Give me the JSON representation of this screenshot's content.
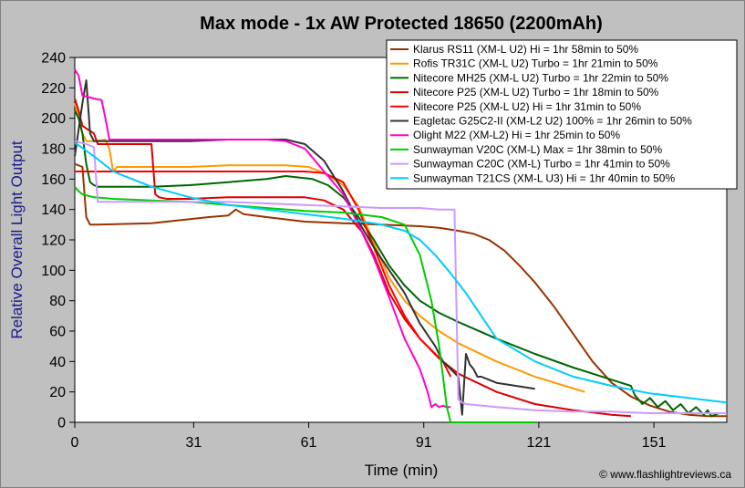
{
  "chart_data": {
    "type": "line",
    "title": "Max mode - 1x AW Protected 18650 (2200mAh)",
    "xlabel": "Time (min)",
    "ylabel": "Relative Overall Light Output",
    "xlim": [
      0,
      170
    ],
    "ylim": [
      0,
      240
    ],
    "xticks": [
      "0",
      "31",
      "61",
      "91",
      "121",
      "151"
    ],
    "xtick_values": [
      0,
      31,
      61,
      91,
      121,
      151
    ],
    "yticks": [
      "0",
      "20",
      "40",
      "60",
      "80",
      "100",
      "120",
      "140",
      "160",
      "180",
      "200",
      "220",
      "240"
    ],
    "ytick_values": [
      0,
      20,
      40,
      60,
      80,
      100,
      120,
      140,
      160,
      180,
      200,
      220,
      240
    ],
    "grid": false,
    "legend_position": "top-right",
    "credit": "© www.flashlightreviews.ca",
    "series": [
      {
        "name": "Klarus RS11 (XM-L U2) Hi = 1hr 58min to 50%",
        "color": "#993300",
        "x": [
          0,
          2,
          3,
          4,
          6,
          20,
          35,
          40,
          42,
          44,
          50,
          60,
          70,
          80,
          90,
          95,
          100,
          104,
          108,
          112,
          116,
          120,
          125,
          130,
          135,
          140,
          145,
          150,
          155,
          160,
          165,
          170
        ],
        "y": [
          170,
          168,
          135,
          130,
          130,
          131,
          135,
          136,
          140,
          137,
          135,
          132,
          131,
          130,
          129,
          128,
          126,
          124,
          120,
          113,
          103,
          92,
          76,
          58,
          40,
          26,
          17,
          11,
          7,
          5,
          4,
          4
        ]
      },
      {
        "name": "Rofis TR31C (XM-L U2) Turbo = 1hr 21min to 50%",
        "color": "#ff9900",
        "x": [
          0,
          1,
          2,
          3,
          5,
          8,
          9,
          10,
          11,
          12,
          20,
          30,
          40,
          55,
          61,
          65,
          70,
          74,
          78,
          82,
          86,
          90,
          95,
          100,
          110,
          120,
          133
        ],
        "y": [
          210,
          200,
          190,
          185,
          185,
          186,
          180,
          165,
          168,
          168,
          168,
          168,
          169,
          169,
          168,
          164,
          156,
          142,
          118,
          95,
          80,
          70,
          60,
          52,
          40,
          30,
          20
        ]
      },
      {
        "name": "Nitecore MH25 (XM-L U2) Turbo = 1hr 22min to 50%",
        "color": "#006600",
        "x": [
          0,
          1,
          2,
          3,
          4,
          5,
          6,
          10,
          20,
          30,
          40,
          50,
          55,
          62,
          66,
          70,
          74,
          78,
          82,
          86,
          90,
          95,
          100,
          110,
          120,
          130,
          140,
          145,
          146,
          148,
          150,
          152,
          154,
          156,
          158,
          160,
          162,
          164,
          165,
          166,
          168
        ],
        "y": [
          205,
          200,
          190,
          170,
          158,
          156,
          155,
          155,
          155,
          156,
          158,
          160,
          162,
          160,
          156,
          148,
          135,
          120,
          103,
          90,
          80,
          72,
          66,
          55,
          45,
          36,
          28,
          24,
          18,
          12,
          16,
          10,
          14,
          8,
          12,
          6,
          10,
          5,
          8,
          4,
          6
        ]
      },
      {
        "name": "Nitecore P25 (XM-L U2) Turbo = 1hr 18min to 50%",
        "color": "#dd0000",
        "x": [
          0,
          1,
          2,
          5,
          6,
          7,
          20,
          21,
          22,
          24,
          30,
          40,
          50,
          60,
          65,
          70,
          75,
          78,
          82,
          86,
          90,
          95,
          100,
          110,
          120,
          130,
          140,
          145
        ],
        "y": [
          213,
          205,
          195,
          190,
          183,
          183,
          183,
          150,
          148,
          147,
          147,
          148,
          148,
          148,
          146,
          140,
          125,
          110,
          85,
          68,
          55,
          42,
          32,
          20,
          12,
          8,
          5,
          4
        ]
      },
      {
        "name": "Nitecore P25 (XM-L U2) Hi = 1hr 31min to 50%",
        "color": "#ff0000",
        "x": [
          0,
          5,
          10,
          20,
          30,
          40,
          50,
          60,
          65,
          70,
          74,
          78,
          82,
          86,
          90,
          94,
          96,
          97,
          98
        ],
        "y": [
          165,
          165,
          165,
          165,
          165,
          165,
          165,
          165,
          164,
          158,
          140,
          115,
          90,
          70,
          55,
          45,
          40,
          35,
          30
        ]
      },
      {
        "name": "Eagletac G25C2-II (XM-L2 U2) 100% = 1hr 26min to 50%",
        "color": "#333333",
        "x": [
          0,
          2,
          3,
          4,
          5,
          10,
          20,
          30,
          40,
          50,
          55,
          60,
          65,
          70,
          74,
          78,
          82,
          86,
          90,
          94,
          96,
          98,
          100,
          101,
          102,
          103,
          104,
          105,
          106,
          108,
          110,
          115,
          120
        ],
        "y": [
          175,
          210,
          225,
          190,
          185,
          185,
          185,
          185,
          186,
          186,
          186,
          183,
          172,
          152,
          132,
          115,
          100,
          85,
          65,
          50,
          40,
          35,
          30,
          5,
          45,
          38,
          35,
          30,
          30,
          28,
          26,
          24,
          22
        ]
      },
      {
        "name": "Olight M22 (XM-L2) Hi = 1hr 25min to 50%",
        "color": "#ff00cc",
        "x": [
          0,
          1,
          2,
          5,
          7,
          8,
          9,
          10,
          20,
          30,
          40,
          50,
          55,
          60,
          65,
          70,
          74,
          78,
          82,
          86,
          88,
          90,
          92,
          93,
          94,
          95,
          96,
          97,
          98
        ],
        "y": [
          232,
          228,
          215,
          213,
          212,
          200,
          186,
          186,
          186,
          186,
          186,
          186,
          185,
          180,
          165,
          150,
          130,
          108,
          82,
          55,
          45,
          35,
          20,
          10,
          12,
          10,
          11,
          10,
          10
        ]
      },
      {
        "name": "Sunwayman V20C (XM-L) Max = 1hr 38min to 50%",
        "color": "#00cc00",
        "x": [
          0,
          1,
          2,
          5,
          10,
          20,
          30,
          40,
          50,
          60,
          70,
          80,
          86,
          90,
          93,
          95,
          96,
          97,
          98,
          99,
          100,
          101,
          110,
          120
        ],
        "y": [
          155,
          152,
          150,
          148,
          147,
          146,
          145,
          143,
          141,
          139,
          138,
          135,
          130,
          110,
          80,
          50,
          30,
          10,
          0,
          0,
          0,
          0,
          0,
          0
        ]
      },
      {
        "name": "Sunwayman C20C (XM-L) Turbo = 1hr 41min to 50%",
        "color": "#cc99ff",
        "x": [
          0,
          3,
          4,
          5,
          6,
          10,
          20,
          30,
          40,
          50,
          60,
          70,
          80,
          90,
          95,
          99,
          100,
          101,
          102,
          110,
          120,
          130,
          140,
          150,
          160,
          170
        ],
        "y": [
          185,
          183,
          182,
          181,
          145,
          145,
          145,
          145,
          145,
          144,
          143,
          142,
          141,
          141,
          140,
          140,
          15,
          13,
          12,
          10,
          8,
          7,
          7,
          6,
          6,
          6
        ]
      },
      {
        "name": "Sunwayman T21CS (XM-L U3) Hi = 1hr 40min to 50%",
        "color": "#00ccff",
        "x": [
          0,
          5,
          10,
          20,
          30,
          40,
          50,
          60,
          70,
          80,
          86,
          90,
          94,
          98,
          102,
          106,
          110,
          120,
          130,
          140,
          150,
          160,
          170
        ],
        "y": [
          184,
          175,
          165,
          155,
          148,
          143,
          140,
          137,
          134,
          130,
          126,
          120,
          110,
          98,
          85,
          70,
          55,
          40,
          30,
          24,
          19,
          16,
          13
        ]
      }
    ]
  }
}
